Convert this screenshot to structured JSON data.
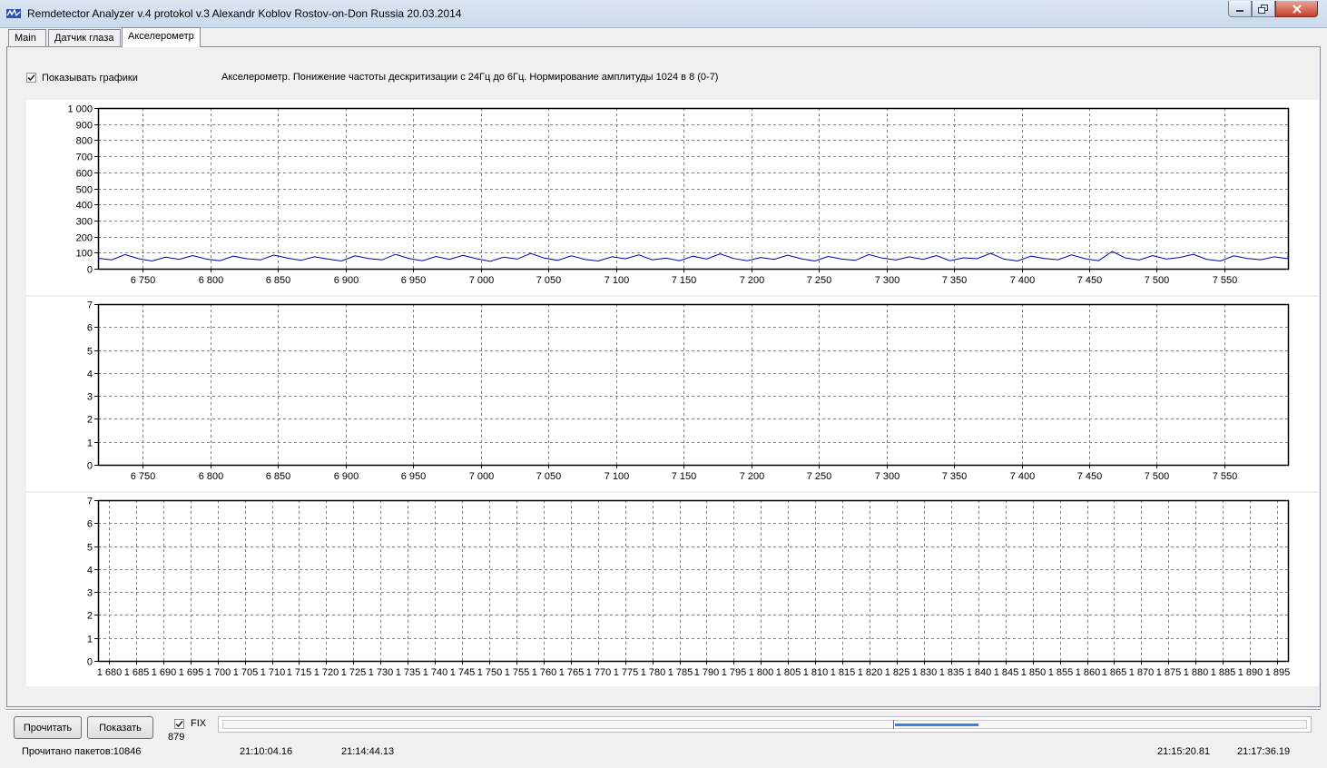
{
  "window": {
    "title": "Remdetector Analyzer v.4 protokol v.3 Alexandr Koblov Rostov-on-Don Russia 20.03.2014"
  },
  "tabs": [
    {
      "label": "Main",
      "active": false
    },
    {
      "label": "Датчик глаза",
      "active": false
    },
    {
      "label": "Акселерометр",
      "active": true
    }
  ],
  "options": {
    "show_graphs_label": "Показывать графики",
    "show_graphs_checked": true,
    "info_text": "Акселерометр. Понижение частоты дескритизации с 24Гц до 6Гц. Нормирование амплитуды 1024 в 8 (0-7)"
  },
  "colors": {
    "series_line": "#0000b4",
    "grid": "#808080",
    "axis": "#000000"
  },
  "chart_data": [
    {
      "type": "line",
      "xlim": [
        6717,
        7597
      ],
      "ylim": [
        0,
        1000
      ],
      "grid": true,
      "x_ticks": [
        6750,
        6800,
        6850,
        6900,
        6950,
        7000,
        7050,
        7100,
        7150,
        7200,
        7250,
        7300,
        7350,
        7400,
        7450,
        7500,
        7550
      ],
      "x_tick_labels": [
        "6 750",
        "6 800",
        "6 850",
        "6 900",
        "6 950",
        "7 000",
        "7 050",
        "7 100",
        "7 150",
        "7 200",
        "7 250",
        "7 300",
        "7 350",
        "7 400",
        "7 450",
        "7 500",
        "7 550"
      ],
      "y_ticks": [
        0,
        100,
        200,
        300,
        400,
        500,
        600,
        700,
        800,
        900,
        1000
      ],
      "y_tick_labels": [
        "0",
        "100",
        "200",
        "300",
        "400",
        "500",
        "600",
        "700",
        "800",
        "900",
        "1 000"
      ],
      "series": [
        {
          "x_start": 6717,
          "x_step": 10,
          "values": [
            65,
            55,
            88,
            62,
            48,
            72,
            58,
            82,
            60,
            50,
            78,
            62,
            55,
            85,
            66,
            52,
            74,
            60,
            48,
            80,
            63,
            55,
            90,
            64,
            50,
            76,
            58,
            83,
            62,
            46,
            72,
            60,
            95,
            66,
            52,
            80,
            58,
            48,
            74,
            62,
            86,
            55,
            66,
            50,
            78,
            60,
            92,
            64,
            50,
            70,
            58,
            84,
            62,
            48,
            76,
            60,
            52,
            88,
            66,
            54,
            74,
            58,
            82,
            50,
            68,
            62,
            96,
            60,
            48,
            78,
            64,
            56,
            86,
            62,
            50,
            108,
            66,
            54,
            82,
            60,
            70,
            90,
            58,
            48,
            80,
            64,
            56,
            74,
            62,
            88
          ]
        }
      ]
    },
    {
      "type": "line",
      "xlim": [
        6717,
        7597
      ],
      "ylim": [
        0,
        7
      ],
      "grid": true,
      "x_ticks": [
        6750,
        6800,
        6850,
        6900,
        6950,
        7000,
        7050,
        7100,
        7150,
        7200,
        7250,
        7300,
        7350,
        7400,
        7450,
        7500,
        7550
      ],
      "x_tick_labels": [
        "6 750",
        "6 800",
        "6 850",
        "6 900",
        "6 950",
        "7 000",
        "7 050",
        "7 100",
        "7 150",
        "7 200",
        "7 250",
        "7 300",
        "7 350",
        "7 400",
        "7 450",
        "7 500",
        "7 550"
      ],
      "y_ticks": [
        0,
        1,
        2,
        3,
        4,
        5,
        6,
        7
      ],
      "y_tick_labels": [
        "0",
        "1",
        "2",
        "3",
        "4",
        "5",
        "6",
        "7"
      ],
      "series": []
    },
    {
      "type": "line",
      "xlim": [
        1678,
        1897
      ],
      "ylim": [
        0,
        7
      ],
      "grid": true,
      "x_ticks": [
        1680,
        1685,
        1690,
        1695,
        1700,
        1705,
        1710,
        1715,
        1720,
        1725,
        1730,
        1735,
        1740,
        1745,
        1750,
        1755,
        1760,
        1765,
        1770,
        1775,
        1780,
        1785,
        1790,
        1795,
        1800,
        1805,
        1810,
        1815,
        1820,
        1825,
        1830,
        1835,
        1840,
        1845,
        1850,
        1855,
        1860,
        1865,
        1870,
        1875,
        1880,
        1885,
        1890,
        1895
      ],
      "x_tick_labels": [
        "1 680",
        "1 685",
        "1 690",
        "1 695",
        "1 700",
        "1 705",
        "1 710",
        "1 715",
        "1 720",
        "1 725",
        "1 730",
        "1 735",
        "1 740",
        "1 745",
        "1 750",
        "1 755",
        "1 760",
        "1 765",
        "1 770",
        "1 775",
        "1 780",
        "1 785",
        "1 790",
        "1 795",
        "1 800",
        "1 805",
        "1 810",
        "1 815",
        "1 820",
        "1 825",
        "1 830",
        "1 835",
        "1 840",
        "1 845",
        "1 850",
        "1 855",
        "1 860",
        "1 865",
        "1 870",
        "1 875",
        "1 880",
        "1 885",
        "1 890",
        "1 895"
      ],
      "y_ticks": [
        0,
        1,
        2,
        3,
        4,
        5,
        6,
        7
      ],
      "y_tick_labels": [
        "0",
        "1",
        "2",
        "3",
        "4",
        "5",
        "6",
        "7"
      ],
      "series": []
    }
  ],
  "controls": {
    "read_button": "Прочитать",
    "show_button": "Показать",
    "fix_label": "FIX",
    "fix_checked": true,
    "fix_value": "879"
  },
  "status": {
    "packets": "Прочитано пакетов:10846",
    "time1": "21:10:04.16",
    "time2": "21:14:44.13",
    "time3": "21:15:20.81",
    "time4": "21:17:36.19"
  }
}
